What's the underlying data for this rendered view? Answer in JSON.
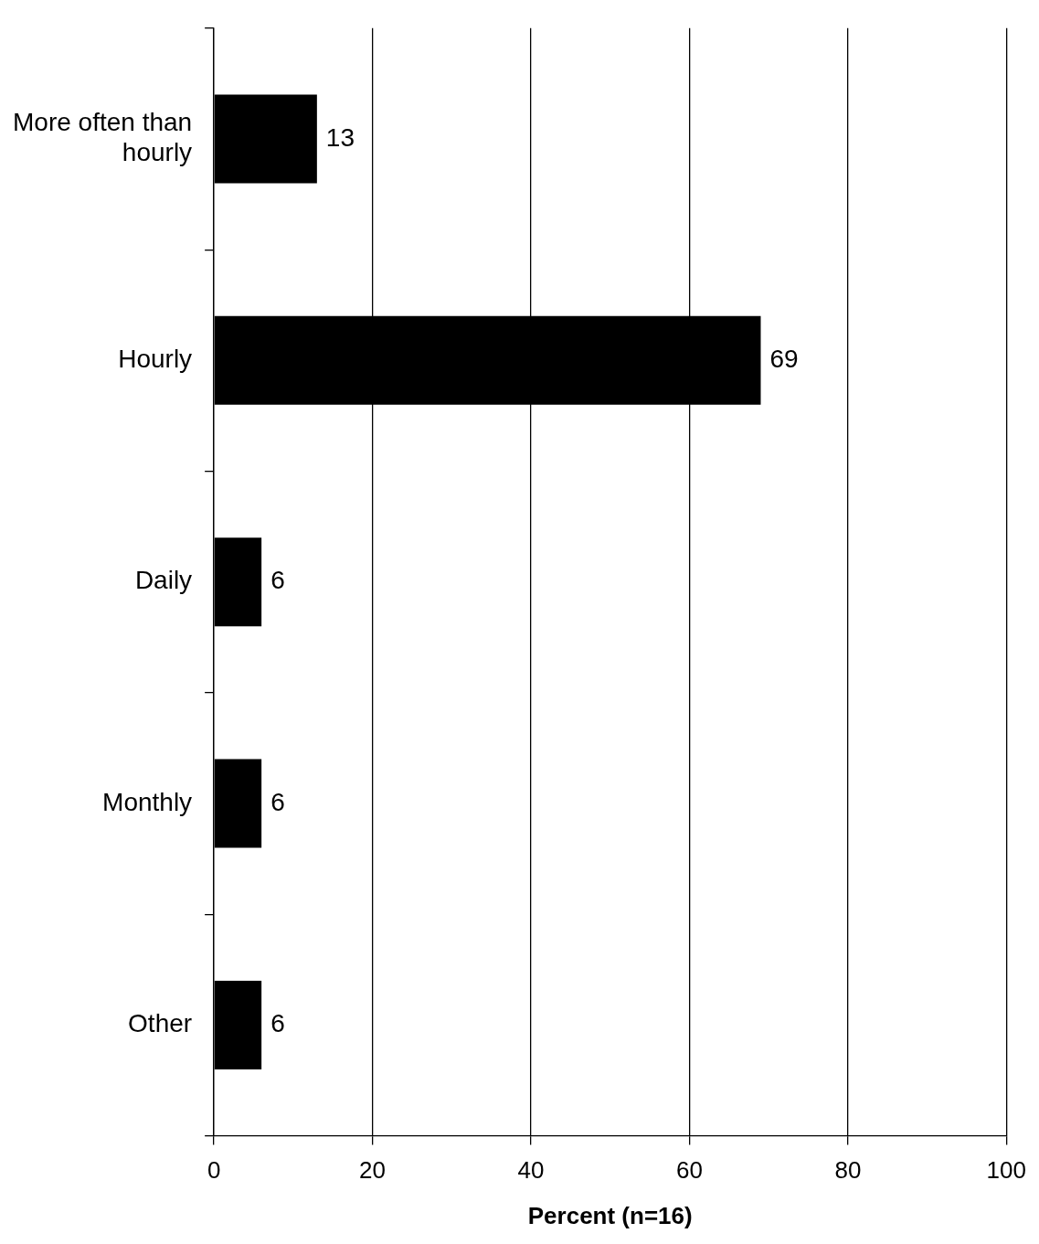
{
  "chart_data": {
    "type": "bar",
    "orientation": "horizontal",
    "xlabel": "Percent (n=16)",
    "categories": [
      "More often than\nhourly",
      "Hourly",
      "Daily",
      "Monthly",
      "Other"
    ],
    "values": [
      13,
      69,
      6,
      6,
      6
    ],
    "color": "#000000",
    "xlim": [
      0,
      100
    ],
    "xticks": [
      0,
      20,
      40,
      60,
      80,
      100
    ],
    "grid": "x",
    "legend": false,
    "data_labels": true
  }
}
